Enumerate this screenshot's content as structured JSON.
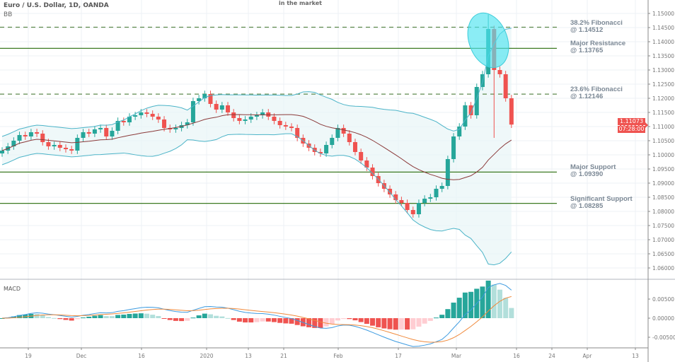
{
  "header": {
    "title": "Euro / U.S. Dollar, 1D, OANDA",
    "indicator": "BB",
    "top_note": "in the market"
  },
  "macd_label": "MACD",
  "price_badge": {
    "price": "1.11073",
    "countdown": "07:28:00",
    "color": "#ef5350"
  },
  "colors": {
    "up": "#26a69a",
    "down": "#ef5350",
    "band": "#4cb4c8",
    "basis": "#8b3a3a",
    "level": "#3d7a22",
    "highlight": "#4de3ef",
    "macd": "#3d9be0",
    "signal": "#f08a3c"
  },
  "annotations": [
    {
      "name": "38.2% Fibonacci",
      "value": "@ 1.14512",
      "level": 1.14512,
      "style": "dashed"
    },
    {
      "name": "Major Resistance",
      "value": "@ 1.13765",
      "level": 1.13765,
      "style": "solid"
    },
    {
      "name": "23.6% Fibonacci",
      "value": "@ 1.12146",
      "level": 1.12146,
      "style": "dashed"
    },
    {
      "name": "Major Support",
      "value": "@ 1.09390",
      "level": 1.0939,
      "style": "solid"
    },
    {
      "name": "Significant Support",
      "value": "@ 1.08285",
      "level": 1.08285,
      "style": "solid"
    }
  ],
  "chart_data": {
    "type": "candlestick",
    "title": "Euro / U.S. Dollar, 1D, OANDA",
    "price_ticks": [
      "1.15000",
      "1.14500",
      "1.14000",
      "1.13500",
      "1.13000",
      "1.12500",
      "1.12000",
      "1.11500",
      "1.11000",
      "1.10500",
      "1.10000",
      "1.09500",
      "1.09000",
      "1.08500",
      "1.08000",
      "1.07500",
      "1.07000",
      "1.06500",
      "1.06000"
    ],
    "ylim": [
      1.0555,
      1.1525
    ],
    "macd_ticks": [
      "0.00500",
      "0.00000",
      "-0.00500"
    ],
    "x_ticks": [
      "19",
      "Dec",
      "16",
      "2020",
      "13",
      "21",
      "Feb",
      "17",
      "Mar",
      "16",
      "24",
      "Apr",
      "13"
    ],
    "first_open": 1.1005,
    "closes": [
      1.1015,
      1.103,
      1.105,
      1.107,
      1.1065,
      1.108,
      1.1075,
      1.1045,
      1.103,
      1.1035,
      1.1025,
      1.102,
      1.1015,
      1.106,
      1.108,
      1.1075,
      1.109,
      1.1095,
      1.1065,
      1.1085,
      1.112,
      1.1115,
      1.1135,
      1.114,
      1.115,
      1.1145,
      1.1135,
      1.1125,
      1.1095,
      1.109,
      1.1095,
      1.1105,
      1.1115,
      1.119,
      1.12,
      1.1215,
      1.118,
      1.116,
      1.1175,
      1.115,
      1.113,
      1.112,
      1.1125,
      1.1135,
      1.114,
      1.115,
      1.1135,
      1.112,
      1.1105,
      1.11,
      1.1095,
      1.106,
      1.104,
      1.1025,
      1.101,
      1.1005,
      1.1035,
      1.106,
      1.1095,
      1.1075,
      1.1045,
      1.101,
      1.098,
      1.0955,
      1.0925,
      1.09,
      1.088,
      1.086,
      1.084,
      1.083,
      1.0805,
      1.079,
      1.083,
      1.0845,
      1.085,
      1.088,
      1.089,
      1.0985,
      1.1065,
      1.11,
      1.1175,
      1.114,
      1.124,
      1.1285,
      1.1445,
      1.13,
      1.1285,
      1.12,
      1.1107
    ],
    "highest_high": 1.1496,
    "last_price": 1.11073
  }
}
